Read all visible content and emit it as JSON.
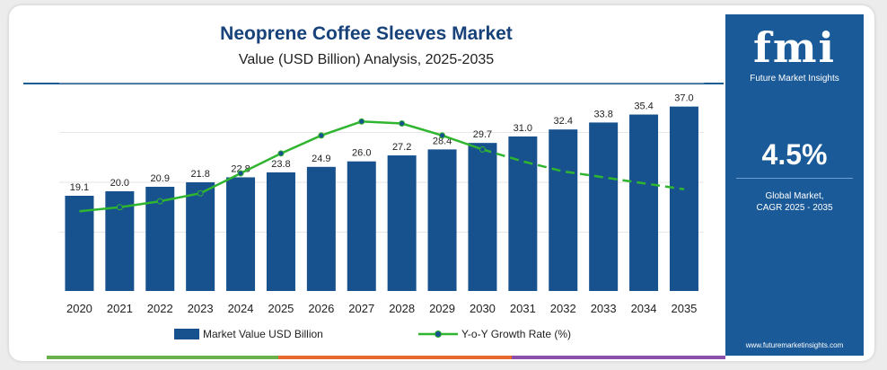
{
  "header": {
    "title": "Neoprene Coffee Sleeves Market",
    "subtitle": "Value (USD Billion) Analysis, 2025-2035"
  },
  "sidebar": {
    "logo_text": "fmi",
    "logo_subtext": "Future Market Insights",
    "cagr_value": "4.5%",
    "cagr_label_line1": "Global Market,",
    "cagr_label_line2": "CAGR 2025 - 2035",
    "url": "www.futuremarketinsights.com"
  },
  "colors": {
    "bar": "#17528e",
    "line": "#2fb52f",
    "title": "#17427a",
    "sidebar": "#1b5a99",
    "stripe_green": "#6ab04c",
    "stripe_orange": "#e8692f",
    "stripe_purple": "#8a4fa8"
  },
  "chart_data": {
    "type": "bar",
    "title": "Neoprene Coffee Sleeves Market",
    "subtitle": "Value (USD Billion) Analysis, 2025-2035",
    "categories": [
      "2020",
      "2021",
      "2022",
      "2023",
      "2024",
      "2025",
      "2026",
      "2027",
      "2028",
      "2029",
      "2030",
      "2031",
      "2032",
      "2033",
      "2034",
      "2035"
    ],
    "series": [
      {
        "name": "Market Value USD Billion",
        "type": "bar",
        "values": [
          19.1,
          20.0,
          20.9,
          21.8,
          22.8,
          23.8,
          24.9,
          26.0,
          27.2,
          28.4,
          29.7,
          31.0,
          32.4,
          33.8,
          35.4,
          37.0
        ],
        "data_labels": [
          "19.1",
          "20.0",
          "20.9",
          "21.8",
          "22.8",
          "23.8",
          "24.9",
          "26.0",
          "27.2",
          "28.4",
          "29.7",
          "31.0",
          "32.4",
          "33.8",
          "35.4",
          "37.0"
        ]
      },
      {
        "name": "Y-o-Y Growth Rate (%)",
        "type": "line",
        "values": [
          4.0,
          4.2,
          4.5,
          4.9,
          5.9,
          6.9,
          7.8,
          8.5,
          8.4,
          7.8,
          7.1,
          6.5,
          6.0,
          5.7,
          5.4,
          5.1
        ],
        "solid_through": "2030",
        "dashed_after": "2030",
        "markers_through": "2030"
      }
    ],
    "ylim": [
      0,
      40
    ],
    "y2lim": [
      0,
      10
    ],
    "grid": true,
    "legend": "bottom-center",
    "xlabel": "",
    "ylabel": ""
  }
}
